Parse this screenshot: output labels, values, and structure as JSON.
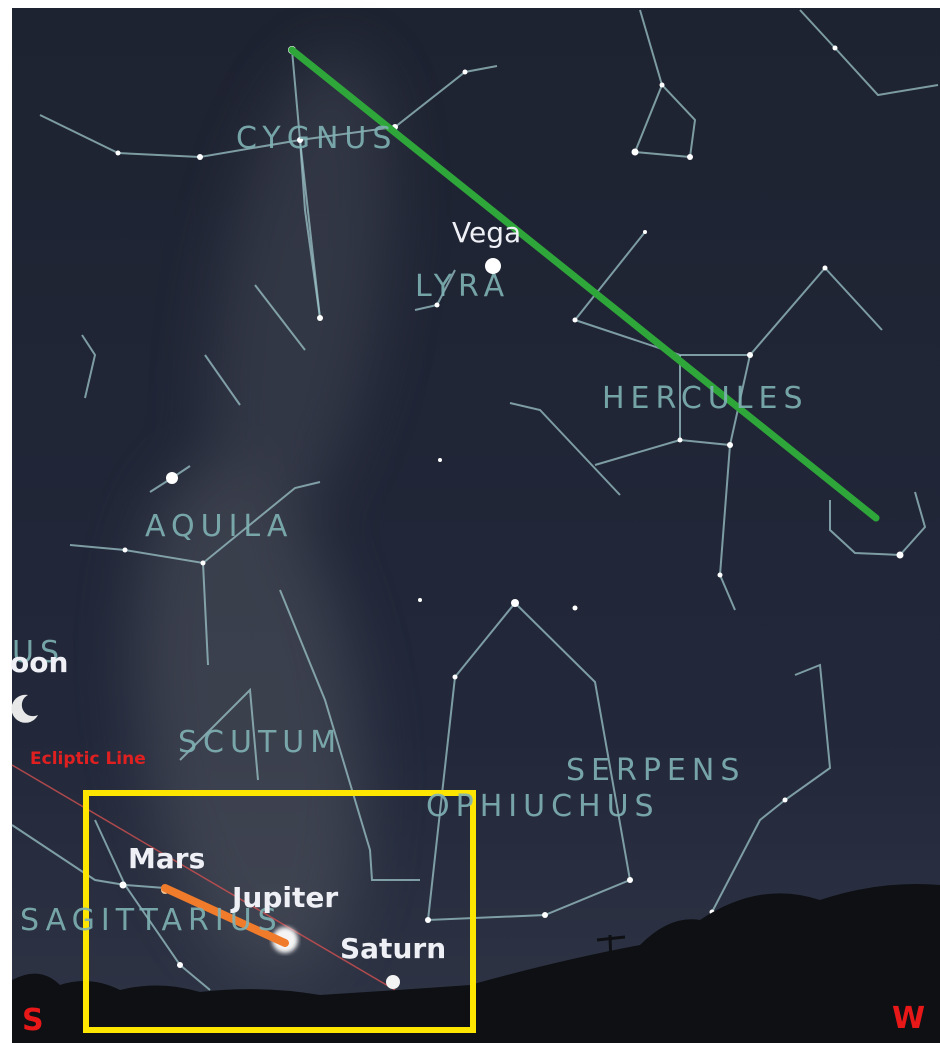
{
  "constellations": [
    "CYGNUS",
    "LYRA",
    "HERCULES",
    "AQUILA",
    "SCUTUM",
    "SERPENS",
    "OPHIUCHUS",
    "SAGITTARIUS",
    "US"
  ],
  "bodies": [
    "Vega",
    "Mars",
    "Jupiter",
    "Saturn",
    "oon"
  ],
  "annotations": {
    "ecliptic": "Ecliptic Line",
    "south": "S",
    "west": "W"
  }
}
